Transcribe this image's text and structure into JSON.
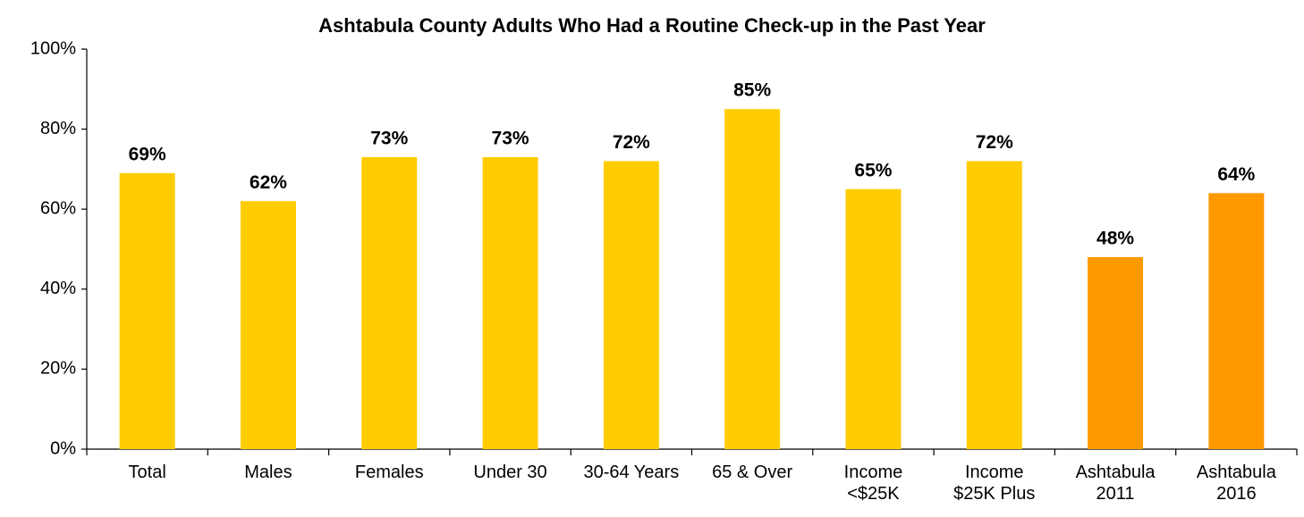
{
  "chart_data": {
    "type": "bar",
    "title": "Ashtabula County Adults Who Had a Routine Check-up in the Past Year",
    "categories": [
      "Total",
      "Males",
      "Females",
      "Under 30",
      "30-64 Years",
      "65 & Over",
      "Income <$25K",
      "Income $25K Plus",
      "Ashtabula 2011",
      "Ashtabula 2016"
    ],
    "values": [
      69,
      62,
      73,
      73,
      72,
      85,
      65,
      72,
      48,
      64
    ],
    "value_labels": [
      "69%",
      "62%",
      "73%",
      "73%",
      "72%",
      "85%",
      "65%",
      "72%",
      "48%",
      "64%"
    ],
    "colors": [
      "#ffcc00",
      "#ffcc00",
      "#ffcc00",
      "#ffcc00",
      "#ffcc00",
      "#ffcc00",
      "#ffcc00",
      "#ffcc00",
      "#ff9900",
      "#ff9900"
    ],
    "ylim": [
      0,
      100
    ],
    "yticks": [
      {
        "value": 0,
        "label": "0%"
      },
      {
        "value": 20,
        "label": "20%"
      },
      {
        "value": 40,
        "label": "40%"
      },
      {
        "value": 60,
        "label": "60%"
      },
      {
        "value": 80,
        "label": "80%"
      },
      {
        "value": 100,
        "label": "100%"
      }
    ],
    "grid": false
  }
}
